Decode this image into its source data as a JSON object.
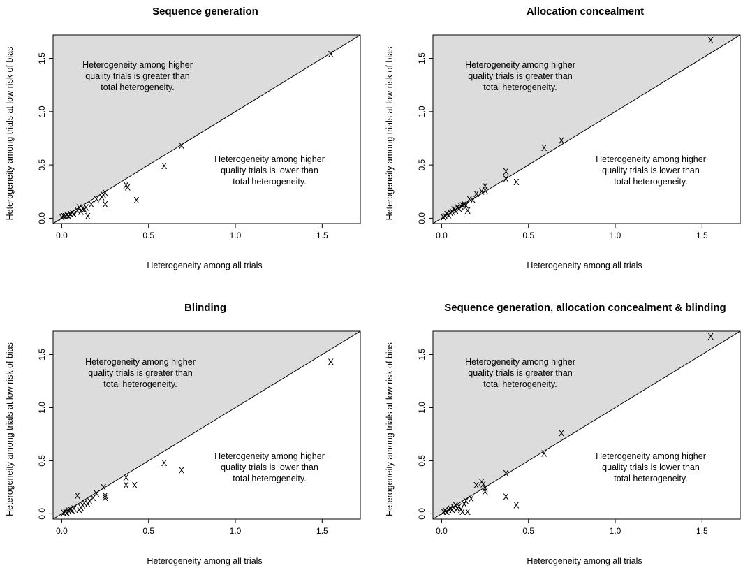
{
  "chart_data": [
    {
      "type": "scatter",
      "title": "Sequence generation",
      "xlabel": "Heterogeneity among all trials",
      "ylabel": "Heterogeneity among trials at low risk of bias",
      "xlim": [
        -0.05,
        1.72
      ],
      "ylim": [
        -0.05,
        1.72
      ],
      "xticks": [
        "0.0",
        "0.5",
        "1.0",
        "1.5"
      ],
      "yticks": [
        "0.0",
        "0.5",
        "1.0",
        "1.5"
      ],
      "marker": "X",
      "reference_line": "y = x",
      "shaded_region": "above y = x",
      "upper_annotation": [
        "Heterogeneity among higher",
        "quality trials is greater than",
        "total heterogeneity."
      ],
      "lower_annotation": [
        "Heterogeneity among higher",
        "quality trials is lower than",
        "total heterogeneity."
      ],
      "x": [
        0.0,
        0.01,
        0.02,
        0.03,
        0.04,
        0.05,
        0.06,
        0.07,
        0.09,
        0.1,
        0.11,
        0.12,
        0.13,
        0.14,
        0.15,
        0.17,
        0.2,
        0.23,
        0.24,
        0.25,
        0.25,
        0.37,
        0.38,
        0.43,
        0.59,
        0.69,
        1.55
      ],
      "y": [
        0.01,
        0.02,
        0.02,
        0.03,
        0.02,
        0.04,
        0.05,
        0.04,
        0.07,
        0.1,
        0.06,
        0.09,
        0.08,
        0.1,
        0.02,
        0.13,
        0.18,
        0.2,
        0.22,
        0.24,
        0.13,
        0.31,
        0.29,
        0.17,
        0.49,
        0.68,
        1.54
      ]
    },
    {
      "type": "scatter",
      "title": "Allocation concealment",
      "xlabel": "Heterogeneity among all trials",
      "ylabel": "Heterogeneity among trials at low risk of bias",
      "xlim": [
        -0.05,
        1.72
      ],
      "ylim": [
        -0.05,
        1.72
      ],
      "xticks": [
        "0.0",
        "0.5",
        "1.0",
        "1.5"
      ],
      "yticks": [
        "0.0",
        "0.5",
        "1.0",
        "1.5"
      ],
      "marker": "X",
      "reference_line": "y = x",
      "shaded_region": "above y = x",
      "upper_annotation": [
        "Heterogeneity among higher",
        "quality trials is greater than",
        "total heterogeneity."
      ],
      "lower_annotation": [
        "Heterogeneity among higher",
        "quality trials is lower than",
        "total heterogeneity."
      ],
      "x": [
        0.01,
        0.02,
        0.03,
        0.04,
        0.05,
        0.06,
        0.07,
        0.08,
        0.09,
        0.1,
        0.11,
        0.12,
        0.13,
        0.14,
        0.15,
        0.16,
        0.18,
        0.2,
        0.23,
        0.25,
        0.25,
        0.37,
        0.37,
        0.43,
        0.59,
        0.69,
        1.55
      ],
      "y": [
        0.01,
        0.02,
        0.04,
        0.03,
        0.05,
        0.06,
        0.08,
        0.07,
        0.1,
        0.09,
        0.11,
        0.12,
        0.13,
        0.12,
        0.07,
        0.18,
        0.17,
        0.23,
        0.25,
        0.3,
        0.26,
        0.44,
        0.37,
        0.34,
        0.66,
        0.73,
        1.67
      ]
    },
    {
      "type": "scatter",
      "title": "Blinding",
      "xlabel": "Heterogeneity among all trials",
      "ylabel": "Heterogeneity among trials at low risk of bias",
      "xlim": [
        -0.05,
        1.72
      ],
      "ylim": [
        -0.05,
        1.72
      ],
      "xticks": [
        "0.0",
        "0.5",
        "1.0",
        "1.5"
      ],
      "yticks": [
        "0.0",
        "0.5",
        "1.0",
        "1.5"
      ],
      "marker": "X",
      "reference_line": "y = x",
      "shaded_region": "above y = x",
      "upper_annotation": [
        "Heterogeneity among higher",
        "quality trials is greater than",
        "total heterogeneity."
      ],
      "lower_annotation": [
        "Heterogeneity among higher",
        "quality trials is lower than",
        "total heterogeneity."
      ],
      "x": [
        0.01,
        0.02,
        0.03,
        0.04,
        0.05,
        0.06,
        0.07,
        0.09,
        0.1,
        0.11,
        0.12,
        0.13,
        0.15,
        0.16,
        0.18,
        0.2,
        0.24,
        0.25,
        0.25,
        0.37,
        0.37,
        0.42,
        0.59,
        0.69,
        1.55
      ],
      "y": [
        0.01,
        0.02,
        0.01,
        0.03,
        0.04,
        0.03,
        0.05,
        0.17,
        0.04,
        0.06,
        0.08,
        0.1,
        0.09,
        0.12,
        0.15,
        0.19,
        0.25,
        0.17,
        0.15,
        0.34,
        0.27,
        0.27,
        0.48,
        0.41,
        1.43
      ]
    },
    {
      "type": "scatter",
      "title": "Sequence generation, allocation concealment & blinding",
      "xlabel": "Heterogeneity among all trials",
      "ylabel": "Heterogeneity among trials at low risk of bias",
      "xlim": [
        -0.05,
        1.72
      ],
      "ylim": [
        -0.05,
        1.72
      ],
      "xticks": [
        "0.0",
        "0.5",
        "1.0",
        "1.5"
      ],
      "yticks": [
        "0.0",
        "0.5",
        "1.0",
        "1.5"
      ],
      "marker": "X",
      "reference_line": "y = x",
      "shaded_region": "above y = x",
      "upper_annotation": [
        "Heterogeneity among higher",
        "quality trials is greater than",
        "total heterogeneity."
      ],
      "lower_annotation": [
        "Heterogeneity among higher",
        "quality trials is lower than",
        "total heterogeneity."
      ],
      "x": [
        0.01,
        0.02,
        0.03,
        0.04,
        0.05,
        0.06,
        0.07,
        0.08,
        0.09,
        0.1,
        0.11,
        0.12,
        0.13,
        0.14,
        0.15,
        0.17,
        0.2,
        0.23,
        0.24,
        0.25,
        0.25,
        0.37,
        0.37,
        0.43,
        0.59,
        0.69,
        1.55
      ],
      "y": [
        0.02,
        0.03,
        0.02,
        0.04,
        0.05,
        0.04,
        0.06,
        0.08,
        0.05,
        0.07,
        0.04,
        0.02,
        0.09,
        0.12,
        0.02,
        0.14,
        0.27,
        0.3,
        0.28,
        0.21,
        0.24,
        0.38,
        0.16,
        0.08,
        0.57,
        0.76,
        1.67
      ]
    }
  ]
}
